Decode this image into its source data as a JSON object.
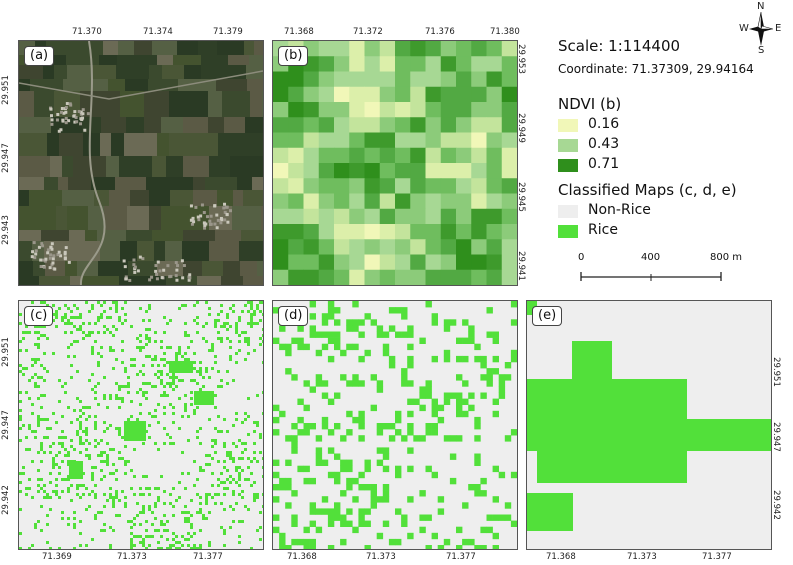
{
  "scale_text": "Scale: 1:114400",
  "coordinate_text": "Coordinate: 71.37309, 29.94164",
  "north_arrow": {
    "n": "N",
    "s": "S",
    "e": "E",
    "w": "W"
  },
  "ndvi_legend": {
    "title": "NDVI (b)",
    "items": [
      {
        "label": "0.16",
        "color": "#f1f7b8"
      },
      {
        "label": "0.43",
        "color": "#a7d894"
      },
      {
        "label": "0.71",
        "color": "#2f8f1c"
      }
    ]
  },
  "class_legend": {
    "title": "Classified Maps (c, d, e)",
    "items": [
      {
        "label": "Non-Rice",
        "color": "#eeeeee"
      },
      {
        "label": "Rice",
        "color": "#52e03a"
      }
    ]
  },
  "scalebar": {
    "labels": [
      "0",
      "400",
      "800 m"
    ]
  },
  "panels": {
    "a": {
      "label": "(a)",
      "top_ticks": [
        "71.370",
        "71.374",
        "71.379"
      ],
      "left_ticks": [
        "29.951",
        "29.947",
        "29.943"
      ]
    },
    "b": {
      "label": "(b)",
      "top_ticks": [
        "71.368",
        "71.372",
        "71.376",
        "71.380"
      ],
      "right_ticks": [
        "29.953",
        "29.949",
        "29.945",
        "29.941"
      ]
    },
    "c": {
      "label": "(c)",
      "bottom_ticks": [
        "71.369",
        "71.373",
        "71.377"
      ],
      "left_ticks": [
        "29.951",
        "29.947",
        "29.942"
      ]
    },
    "d": {
      "label": "(d)",
      "bottom_ticks": [
        "71.368",
        "71.373",
        "71.377"
      ]
    },
    "e": {
      "label": "(e)",
      "bottom_ticks": [
        "71.368",
        "71.373",
        "71.377"
      ],
      "right_ticks": [
        "29.951",
        "29.947",
        "29.942"
      ]
    }
  }
}
